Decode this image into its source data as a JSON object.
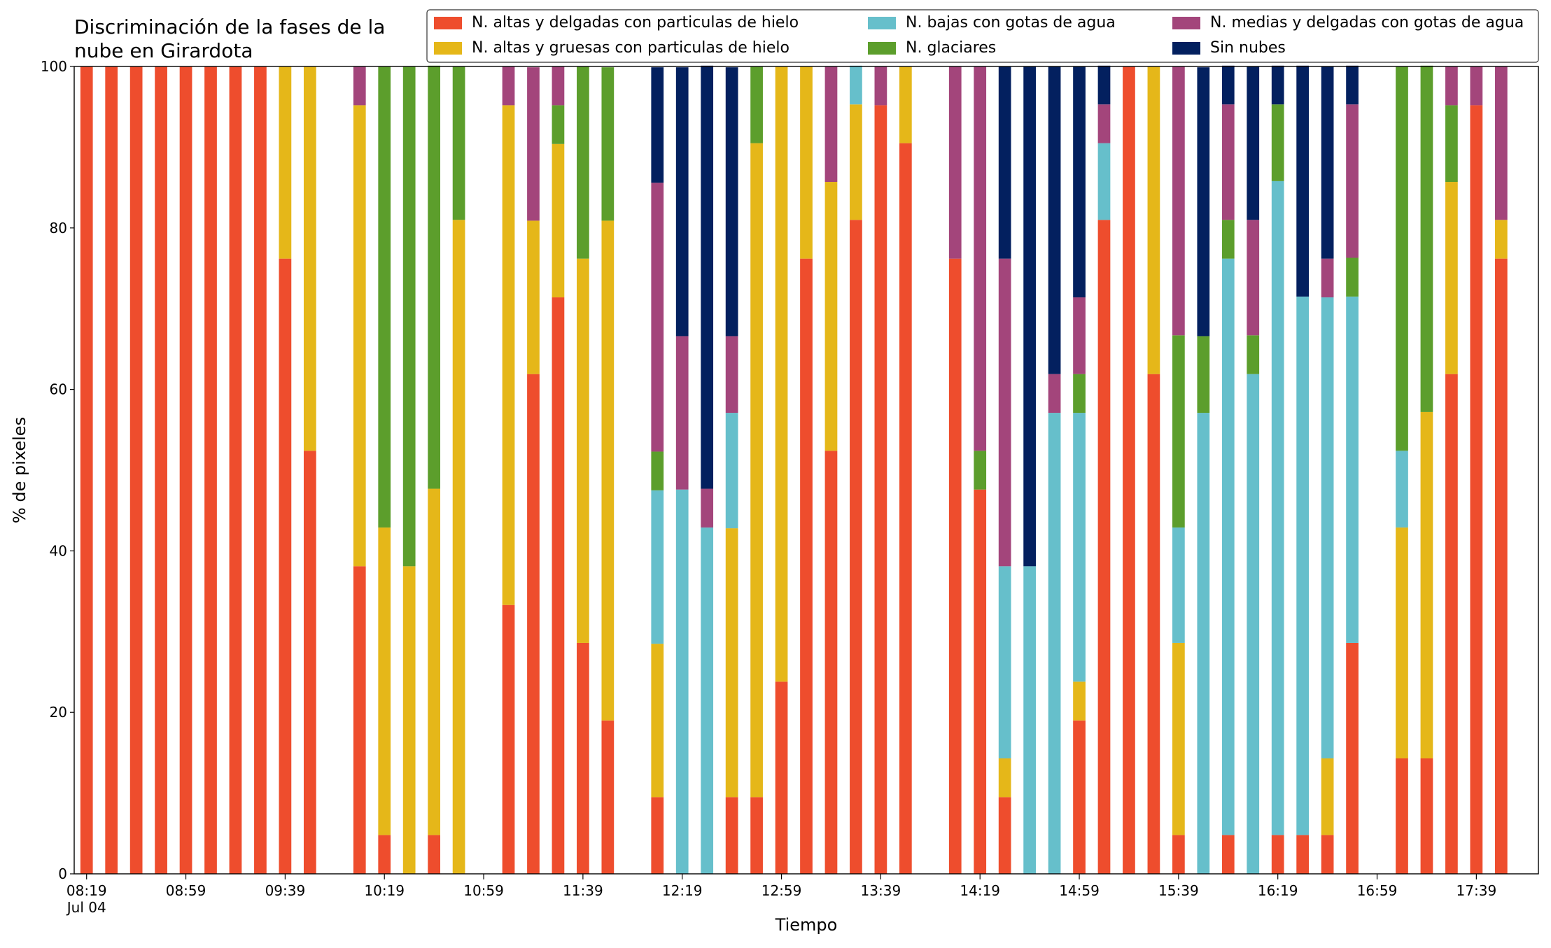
{
  "chart_data": {
    "type": "stacked_bar",
    "title": "Discriminación de la fases de la\nnube en Girardota",
    "x_label": "Tiempo",
    "y_label": "% de pixeles",
    "date_label": "Jul 04",
    "x": [
      "08:19",
      "08:29",
      "08:39",
      "08:49",
      "08:59",
      "09:09",
      "09:19",
      "09:29",
      "09:39",
      "09:49",
      "10:09",
      "10:19",
      "10:29",
      "10:39",
      "10:49",
      "11:09",
      "11:19",
      "11:29",
      "11:39",
      "11:49",
      "12:09",
      "12:19",
      "12:29",
      "12:39",
      "12:49",
      "12:59",
      "13:09",
      "13:19",
      "13:29",
      "13:39",
      "13:49",
      "14:09",
      "14:19",
      "14:29",
      "14:39",
      "14:49",
      "14:59",
      "15:09",
      "15:19",
      "15:29",
      "15:39",
      "15:49",
      "15:59",
      "16:09",
      "16:19",
      "16:29",
      "16:39",
      "16:49",
      "17:09",
      "17:19",
      "17:29",
      "17:39",
      "17:49"
    ],
    "series": [
      {
        "name": "N. altas y delgadas con particulas de hielo",
        "color": "#ee4d2d",
        "values": [
          100,
          100,
          100,
          100,
          100,
          100,
          100,
          100,
          76.2,
          52.4,
          38.1,
          4.8,
          0,
          4.8,
          0,
          33.3,
          61.9,
          71.4,
          28.6,
          19,
          9.5,
          0,
          0,
          9.5,
          9.5,
          23.8,
          76.2,
          52.4,
          81,
          95.2,
          90.5,
          76.2,
          47.6,
          9.5,
          0,
          0,
          19,
          81,
          100,
          61.9,
          4.8,
          0,
          4.8,
          0,
          4.8,
          4.8,
          4.8,
          28.6,
          14.3,
          14.3,
          61.9,
          95.2,
          76.2
        ]
      },
      {
        "name": "N. altas y gruesas con particulas de hielo",
        "color": "#e5b719",
        "values": [
          0,
          0,
          0,
          0,
          0,
          0,
          0,
          0,
          23.8,
          47.6,
          57.1,
          38.1,
          38.1,
          42.9,
          81,
          61.9,
          19,
          19,
          47.6,
          61.9,
          19,
          0,
          0,
          33.3,
          81,
          76.2,
          23.8,
          33.3,
          14.3,
          0,
          9.5,
          0,
          0,
          4.8,
          0,
          0,
          4.8,
          0,
          0,
          38.1,
          23.8,
          0,
          0,
          0,
          0,
          0,
          9.5,
          0,
          28.6,
          42.9,
          23.8,
          0,
          4.8
        ]
      },
      {
        "name": "N. bajas con gotas de agua",
        "color": "#66bfcb",
        "values": [
          0,
          0,
          0,
          0,
          0,
          0,
          0,
          0,
          0,
          0,
          0,
          0,
          0,
          0,
          0,
          0,
          0,
          0,
          0,
          0,
          19,
          47.6,
          42.9,
          14.3,
          0,
          0,
          0,
          0,
          4.8,
          0,
          0,
          0,
          0,
          23.8,
          38.1,
          57.1,
          33.3,
          9.5,
          0,
          0,
          14.3,
          57.1,
          71.4,
          61.9,
          81,
          66.7,
          57.1,
          42.9,
          9.5,
          0,
          0,
          0,
          0
        ]
      },
      {
        "name": "N. glaciares",
        "color": "#5c9e2c",
        "values": [
          0,
          0,
          0,
          0,
          0,
          0,
          0,
          0,
          0,
          0,
          0,
          57.1,
          61.9,
          52.4,
          19,
          0,
          0,
          4.8,
          23.8,
          19,
          4.8,
          0,
          0,
          0,
          9.5,
          0,
          0,
          0,
          0,
          0,
          0,
          0,
          4.8,
          0,
          0,
          0,
          4.8,
          0,
          0,
          0,
          23.8,
          9.5,
          4.8,
          4.8,
          9.5,
          0,
          0,
          4.8,
          47.6,
          42.9,
          9.5,
          0,
          0
        ]
      },
      {
        "name": "N. medias y delgadas con gotas de agua",
        "color": "#a3457b",
        "values": [
          0,
          0,
          0,
          0,
          0,
          0,
          0,
          0,
          0,
          0,
          4.8,
          0,
          0,
          0,
          0,
          4.8,
          19,
          4.8,
          0,
          0,
          33.3,
          19,
          4.8,
          9.5,
          0,
          0,
          0,
          14.3,
          0,
          4.8,
          0,
          23.8,
          47.6,
          38.1,
          0,
          4.8,
          9.5,
          4.8,
          0,
          0,
          33.3,
          0,
          14.3,
          14.3,
          0,
          0,
          4.8,
          19,
          0,
          0,
          4.8,
          4.8,
          19
        ]
      },
      {
        "name": "Sin nubes",
        "color": "#03205f",
        "values": [
          0,
          0,
          0,
          0,
          0,
          0,
          0,
          0,
          0,
          0,
          0,
          0,
          0,
          0,
          0,
          0,
          0,
          0,
          0,
          0,
          14.3,
          33.3,
          52.4,
          33.3,
          0,
          0,
          0,
          0,
          0,
          0,
          0,
          0,
          0,
          23.8,
          61.9,
          38.1,
          28.6,
          4.8,
          0,
          0,
          0,
          33.3,
          4.8,
          19,
          4.8,
          28.6,
          23.8,
          4.8,
          0,
          0,
          0,
          0,
          0
        ]
      }
    ],
    "xlim": [
      "08:14",
      "18:04"
    ],
    "xticks": [
      "08:19",
      "08:59",
      "09:39",
      "10:19",
      "10:59",
      "11:39",
      "12:19",
      "12:59",
      "13:39",
      "14:19",
      "14:59",
      "15:39",
      "16:19",
      "16:59",
      "17:39"
    ],
    "ylim": [
      0,
      100
    ],
    "yticks": [
      0,
      20,
      40,
      60,
      80,
      100
    ],
    "grid": false,
    "legend": "upper right"
  }
}
